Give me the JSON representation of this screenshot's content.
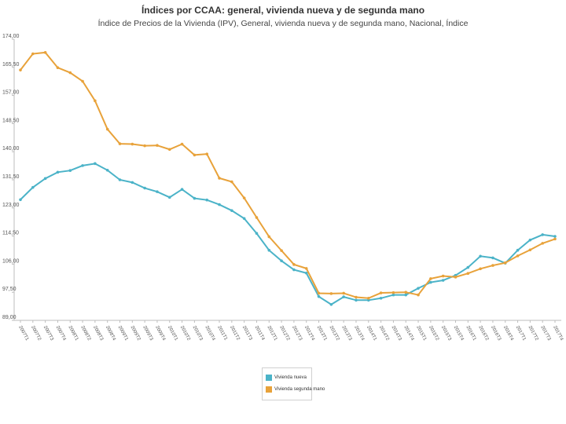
{
  "chart_data": {
    "type": "line",
    "title": "Índices por CCAA: general, vivienda nueva y de segunda mano",
    "subtitle": "Índice de Precios de la Vivienda (IPV), General, vivienda nueva y de segunda mano, Nacional, Índice",
    "y_ticks": [
      "89,00",
      "97,50",
      "106,00",
      "114,50",
      "123,00",
      "131,50",
      "140,00",
      "148,50",
      "157,00",
      "165,50",
      "174,00"
    ],
    "ylim": [
      89,
      174
    ],
    "x": [
      "2007T1",
      "2007T2",
      "2007T3",
      "2007T4",
      "2008T1",
      "2008T2",
      "2008T3",
      "2008T4",
      "2009T1",
      "2009T2",
      "2009T3",
      "2009T4",
      "2010T1",
      "2010T2",
      "2010T3",
      "2010T4",
      "2011T1",
      "2011T2",
      "2011T3",
      "2011T4",
      "2012T1",
      "2012T2",
      "2012T3",
      "2012T4",
      "2013T1",
      "2013T2",
      "2013T3",
      "2013T4",
      "2014T1",
      "2014T2",
      "2014T3",
      "2014T4",
      "2015T1",
      "2015T2",
      "2015T3",
      "2015T4",
      "2016T1",
      "2016T2",
      "2016T3",
      "2016T4",
      "2017T1",
      "2017T2",
      "2017T3",
      "2017T4"
    ],
    "series": [
      {
        "name": "Vivienda nueva",
        "color": "#4bb3c8",
        "values": [
          125.5,
          129.2,
          131.9,
          133.8,
          134.3,
          135.8,
          136.4,
          134.4,
          131.5,
          130.7,
          129.0,
          127.9,
          126.2,
          128.6,
          125.9,
          125.4,
          124.0,
          122.2,
          119.8,
          115.3,
          110.2,
          107.0,
          104.3,
          103.3,
          96.2,
          93.8,
          96.1,
          95.1,
          95.1,
          95.7,
          96.7,
          96.7,
          98.7,
          100.5,
          101.1,
          102.6,
          105.0,
          108.4,
          107.9,
          106.3,
          110.2,
          113.3,
          114.9,
          114.4
        ]
      },
      {
        "name": "Vivienda segunda mano",
        "color": "#e8a23a",
        "values": [
          164.7,
          169.6,
          170.0,
          165.4,
          163.9,
          161.3,
          155.4,
          146.8,
          142.4,
          142.3,
          141.8,
          141.9,
          140.7,
          142.3,
          139.0,
          139.3,
          132.0,
          130.9,
          126.0,
          120.1,
          114.3,
          110.1,
          105.9,
          104.7,
          97.2,
          97.1,
          97.2,
          96.0,
          95.7,
          97.3,
          97.4,
          97.5,
          96.7,
          101.6,
          102.4,
          102.1,
          103.2,
          104.6,
          105.6,
          106.4,
          108.5,
          110.3,
          112.3,
          113.6
        ]
      }
    ],
    "grid": false,
    "legend_position": "bottom-center"
  }
}
